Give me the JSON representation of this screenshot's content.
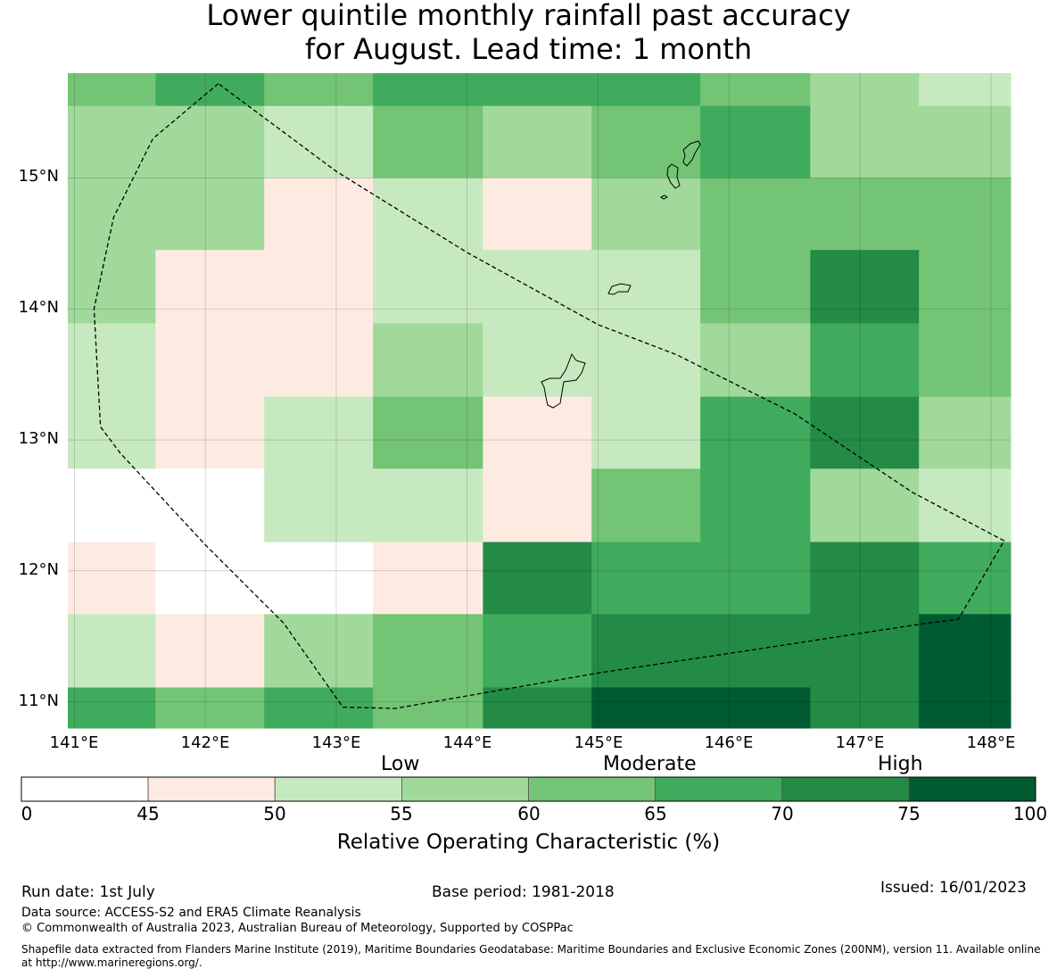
{
  "title": {
    "line1": "Lower quintile monthly rainfall past accuracy",
    "line2": "for August. Lead time: 1 month"
  },
  "map": {
    "x_ticks": [
      "141°E",
      "142°E",
      "143°E",
      "144°E",
      "145°E",
      "146°E",
      "147°E",
      "148°E"
    ],
    "y_ticks": [
      "15°N",
      "14°N",
      "13°N",
      "12°N",
      "11°N"
    ],
    "grid_lon_edges": [
      140.95,
      141.62,
      142.45,
      143.28,
      144.12,
      144.95,
      145.78,
      146.62,
      147.45,
      148.15
    ],
    "grid_lat_edges": [
      15.8,
      15.55,
      15.0,
      14.45,
      13.89,
      13.33,
      12.78,
      12.22,
      11.67,
      11.11,
      10.8
    ],
    "cells_roc_percent": [
      [
        62,
        68,
        62,
        68,
        68,
        68,
        62,
        57,
        52
      ],
      [
        57,
        57,
        52,
        62,
        57,
        62,
        68,
        57,
        57
      ],
      [
        57,
        57,
        47,
        52,
        47,
        57,
        62,
        62,
        62
      ],
      [
        57,
        47,
        47,
        52,
        52,
        52,
        62,
        72,
        62
      ],
      [
        52,
        47,
        47,
        57,
        52,
        52,
        57,
        68,
        62
      ],
      [
        52,
        47,
        52,
        62,
        47,
        52,
        68,
        72,
        57
      ],
      [
        20,
        20,
        52,
        52,
        47,
        62,
        68,
        57,
        52
      ],
      [
        47,
        20,
        20,
        47,
        72,
        68,
        68,
        72,
        68
      ],
      [
        52,
        47,
        57,
        62,
        68,
        72,
        72,
        72,
        80
      ],
      [
        68,
        62,
        68,
        62,
        72,
        80,
        80,
        72,
        80
      ]
    ],
    "eez_boundary": [
      [
        142.1,
        15.72
      ],
      [
        141.6,
        15.3
      ],
      [
        141.3,
        14.7
      ],
      [
        141.15,
        14.0
      ],
      [
        141.2,
        13.1
      ],
      [
        141.35,
        12.9
      ],
      [
        142.0,
        12.2
      ],
      [
        142.6,
        11.6
      ],
      [
        143.05,
        10.96
      ],
      [
        143.45,
        10.95
      ],
      [
        145.0,
        11.22
      ],
      [
        146.2,
        11.4
      ],
      [
        147.5,
        11.6
      ],
      [
        147.75,
        11.63
      ],
      [
        148.1,
        12.23
      ],
      [
        147.4,
        12.6
      ],
      [
        146.5,
        13.2
      ],
      [
        145.6,
        13.65
      ],
      [
        145.0,
        13.88
      ],
      [
        144.0,
        14.43
      ],
      [
        143.0,
        15.05
      ],
      [
        142.1,
        15.72
      ]
    ]
  },
  "legend": {
    "category_labels": [
      "Low",
      "Moderate",
      "High"
    ],
    "bins": [
      [
        0,
        45
      ],
      [
        45,
        50
      ],
      [
        50,
        55
      ],
      [
        55,
        60
      ],
      [
        60,
        65
      ],
      [
        65,
        70
      ],
      [
        70,
        75
      ],
      [
        75,
        100
      ]
    ],
    "tick_labels": [
      "0",
      "45",
      "50",
      "55",
      "60",
      "65",
      "70",
      "75",
      "100"
    ],
    "colors": [
      "#ffffff",
      "#fdebe1",
      "#c7e9c0",
      "#a1d99b",
      "#74c476",
      "#41ab5d",
      "#238b45",
      "#005a32"
    ],
    "axis_label": "Relative Operating Characteristic (%)"
  },
  "footer": {
    "run_date": "Run date: 1st July",
    "base_period": "Base period: 1981-2018",
    "issued": "Issued: 16/01/2023",
    "data_source": "Data source: ACCESS-S2 and ERA5 Climate Reanalysis",
    "copyright": "© Commonwealth of Australia 2023, Australian Bureau of Meteorology, Supported by COSPPac",
    "shapefile_line1": "Shapefile data extracted from Flanders Marine Institute (2019), Maritime Boundaries Geodatabase: Maritime Boundaries and Exclusive Economic Zones (200NM), version 11. Available online",
    "shapefile_line2": "at http://www.marineregions.org/."
  }
}
